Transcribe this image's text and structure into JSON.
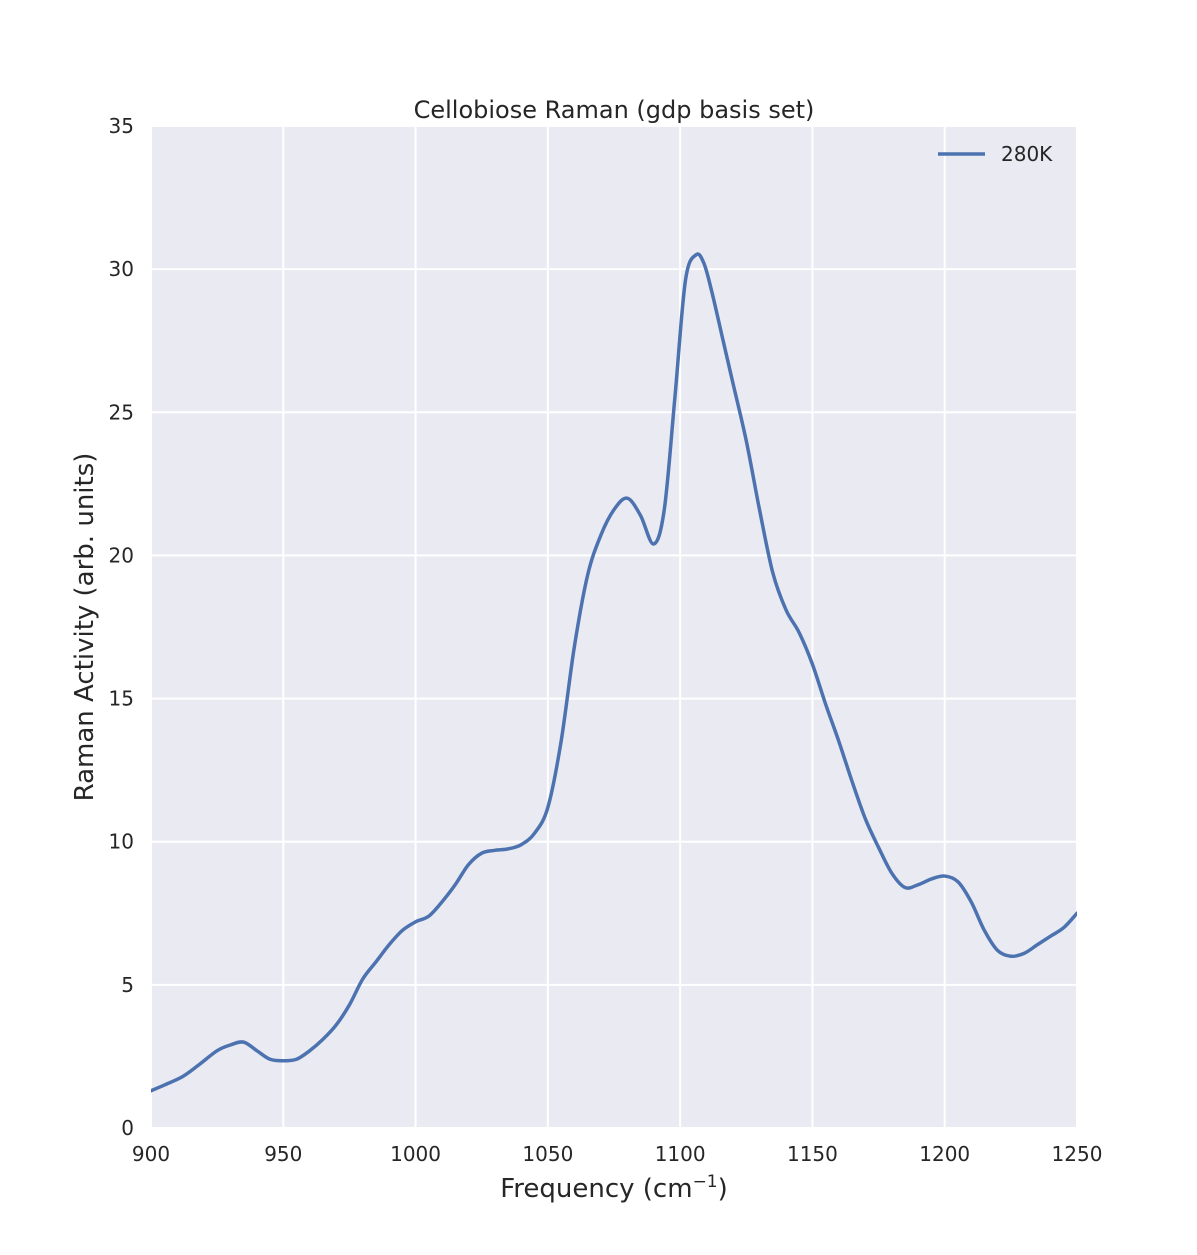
{
  "chart_data": {
    "type": "line",
    "title": "Cellobiose Raman (gdp basis set)",
    "xlabel": "Frequency (cm",
    "xlabel_sup": "−1",
    "xlabel_end": ")",
    "ylabel": "Raman Activity (arb. units)",
    "xlim": [
      900,
      1250
    ],
    "ylim": [
      0,
      35
    ],
    "xticks": [
      900,
      950,
      1000,
      1050,
      1100,
      1150,
      1200,
      1250
    ],
    "yticks": [
      0,
      5,
      10,
      15,
      20,
      25,
      30,
      35
    ],
    "grid": true,
    "legend_position": "top-right",
    "line_color": "#4c72b0",
    "background_color": "#eaeaf2",
    "series": [
      {
        "name": "280K",
        "x": [
          900,
          905,
          912,
          918,
          925,
          930,
          935,
          940,
          945,
          950,
          955,
          960,
          965,
          970,
          975,
          980,
          985,
          990,
          995,
          1000,
          1005,
          1010,
          1015,
          1020,
          1025,
          1030,
          1035,
          1040,
          1045,
          1050,
          1055,
          1060,
          1065,
          1070,
          1075,
          1080,
          1085,
          1090,
          1094,
          1098,
          1102,
          1106,
          1109,
          1112,
          1116,
          1120,
          1125,
          1130,
          1135,
          1140,
          1145,
          1150,
          1155,
          1160,
          1165,
          1170,
          1175,
          1180,
          1185,
          1190,
          1195,
          1200,
          1205,
          1210,
          1215,
          1220,
          1225,
          1230,
          1235,
          1240,
          1245,
          1250
        ],
        "y": [
          1.3,
          1.5,
          1.8,
          2.2,
          2.7,
          2.9,
          3.0,
          2.7,
          2.4,
          2.35,
          2.4,
          2.7,
          3.1,
          3.6,
          4.3,
          5.2,
          5.8,
          6.4,
          6.9,
          7.2,
          7.4,
          7.9,
          8.5,
          9.2,
          9.6,
          9.7,
          9.75,
          9.9,
          10.3,
          11.2,
          13.5,
          16.8,
          19.3,
          20.7,
          21.6,
          22.0,
          21.4,
          20.4,
          21.6,
          25.5,
          29.6,
          30.5,
          30.2,
          29.2,
          27.6,
          26.0,
          24.0,
          21.6,
          19.4,
          18.1,
          17.3,
          16.2,
          14.8,
          13.5,
          12.1,
          10.8,
          9.8,
          8.9,
          8.4,
          8.5,
          8.7,
          8.8,
          8.6,
          7.9,
          6.9,
          6.2,
          6.0,
          6.1,
          6.4,
          6.7,
          7.0,
          7.5
        ]
      }
    ]
  }
}
